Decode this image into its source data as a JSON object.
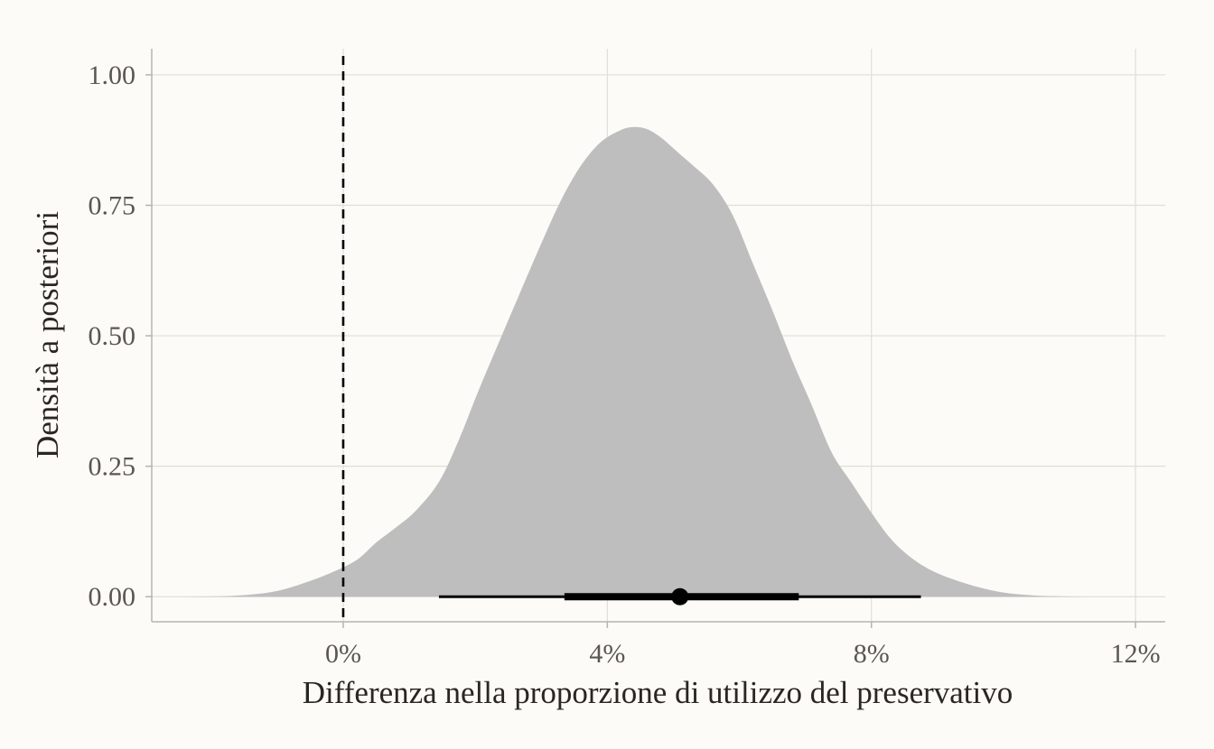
{
  "chart_data": {
    "type": "area",
    "title": "",
    "xlabel": "Differenza nella proporzione di utilizzo del preservativo",
    "ylabel": "Densità a posteriori",
    "xlim": [
      -0.029,
      0.1245
    ],
    "ylim": [
      -0.048,
      1.05
    ],
    "x_ticks": [
      0,
      0.04,
      0.08,
      0.12
    ],
    "x_tick_labels": [
      "0%",
      "4%",
      "8%",
      "12%"
    ],
    "y_ticks": [
      0,
      0.25,
      0.5,
      0.75,
      1.0
    ],
    "y_tick_labels": [
      "0.00",
      "0.25",
      "0.50",
      "0.75",
      "1.00"
    ],
    "grid": true,
    "reference_line": {
      "x": 0,
      "style": "dashed",
      "color": "#000000"
    },
    "density": {
      "fill": "#bebebe",
      "x": [
        -0.023,
        -0.018,
        -0.014,
        -0.01,
        -0.006,
        -0.002,
        0.002,
        0.005,
        0.008,
        0.011,
        0.0145,
        0.0175,
        0.0205,
        0.024,
        0.027,
        0.03,
        0.033,
        0.036,
        0.039,
        0.042,
        0.044,
        0.046,
        0.048,
        0.0495,
        0.051,
        0.053,
        0.056,
        0.059,
        0.062,
        0.065,
        0.068,
        0.071,
        0.074,
        0.077,
        0.08,
        0.083,
        0.086,
        0.089,
        0.092,
        0.096,
        0.1,
        0.104,
        0.108,
        0.112,
        0.118
      ],
      "y": [
        0.0,
        0.001,
        0.004,
        0.011,
        0.026,
        0.045,
        0.07,
        0.104,
        0.133,
        0.165,
        0.22,
        0.3,
        0.395,
        0.5,
        0.589,
        0.677,
        0.76,
        0.826,
        0.871,
        0.894,
        0.9,
        0.896,
        0.881,
        0.865,
        0.848,
        0.826,
        0.79,
        0.731,
        0.64,
        0.549,
        0.453,
        0.366,
        0.276,
        0.218,
        0.161,
        0.11,
        0.075,
        0.051,
        0.035,
        0.019,
        0.008,
        0.003,
        0.001,
        0.0,
        0.0
      ]
    },
    "point_interval": {
      "point": 0.051,
      "inner": [
        0.0335,
        0.069
      ],
      "outer": [
        0.0145,
        0.0875
      ],
      "color": "#000000"
    }
  }
}
